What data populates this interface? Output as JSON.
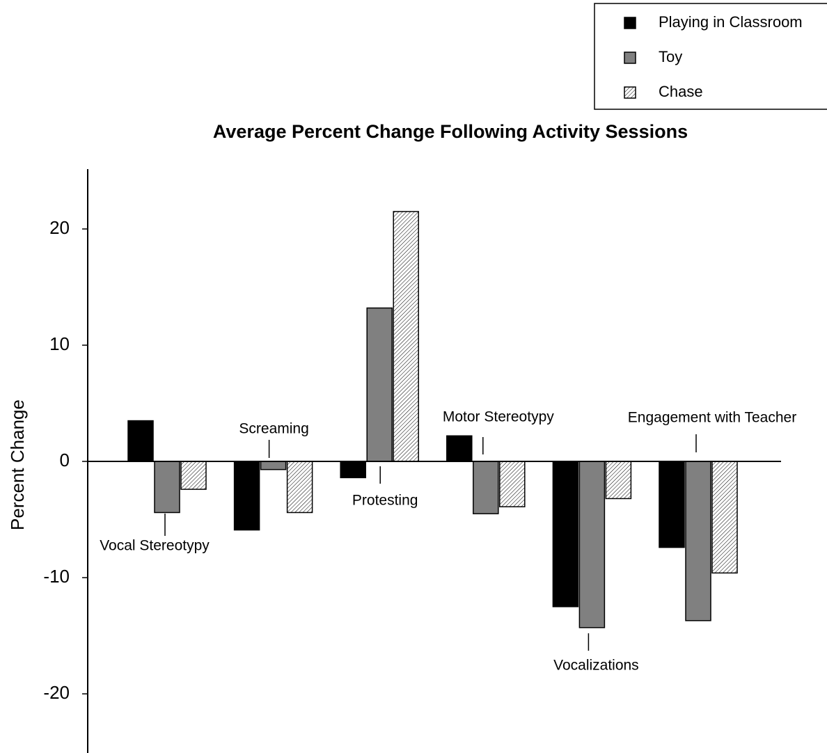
{
  "chart_data": {
    "type": "bar",
    "title": "Average Percent Change Following Activity Sessions",
    "y_label": "Percent Change",
    "categories": [
      "Vocal Stereotypy",
      "Screaming",
      "Protesting",
      "Motor Stereotypy",
      "Vocalizations",
      "Engagement with Teacher"
    ],
    "series": [
      {
        "name": "Playing in Classroom",
        "color": "#000000",
        "values": [
          3.5,
          -5.9,
          -1.4,
          2.2,
          -12.5,
          -7.4
        ]
      },
      {
        "name": "Toy",
        "color": "#808080",
        "values": [
          -4.4,
          -0.7,
          13.2,
          -4.5,
          -14.3,
          -13.7
        ]
      },
      {
        "name": "Chase",
        "color": "#ffffff",
        "pattern": "hatch",
        "values": [
          -2.4,
          -4.4,
          21.5,
          -3.9,
          -3.2,
          -9.6
        ]
      }
    ],
    "ylim": [
      -25,
      25
    ],
    "yticks": [
      -20,
      -10,
      0,
      10,
      20
    ],
    "legend": "top-right"
  }
}
